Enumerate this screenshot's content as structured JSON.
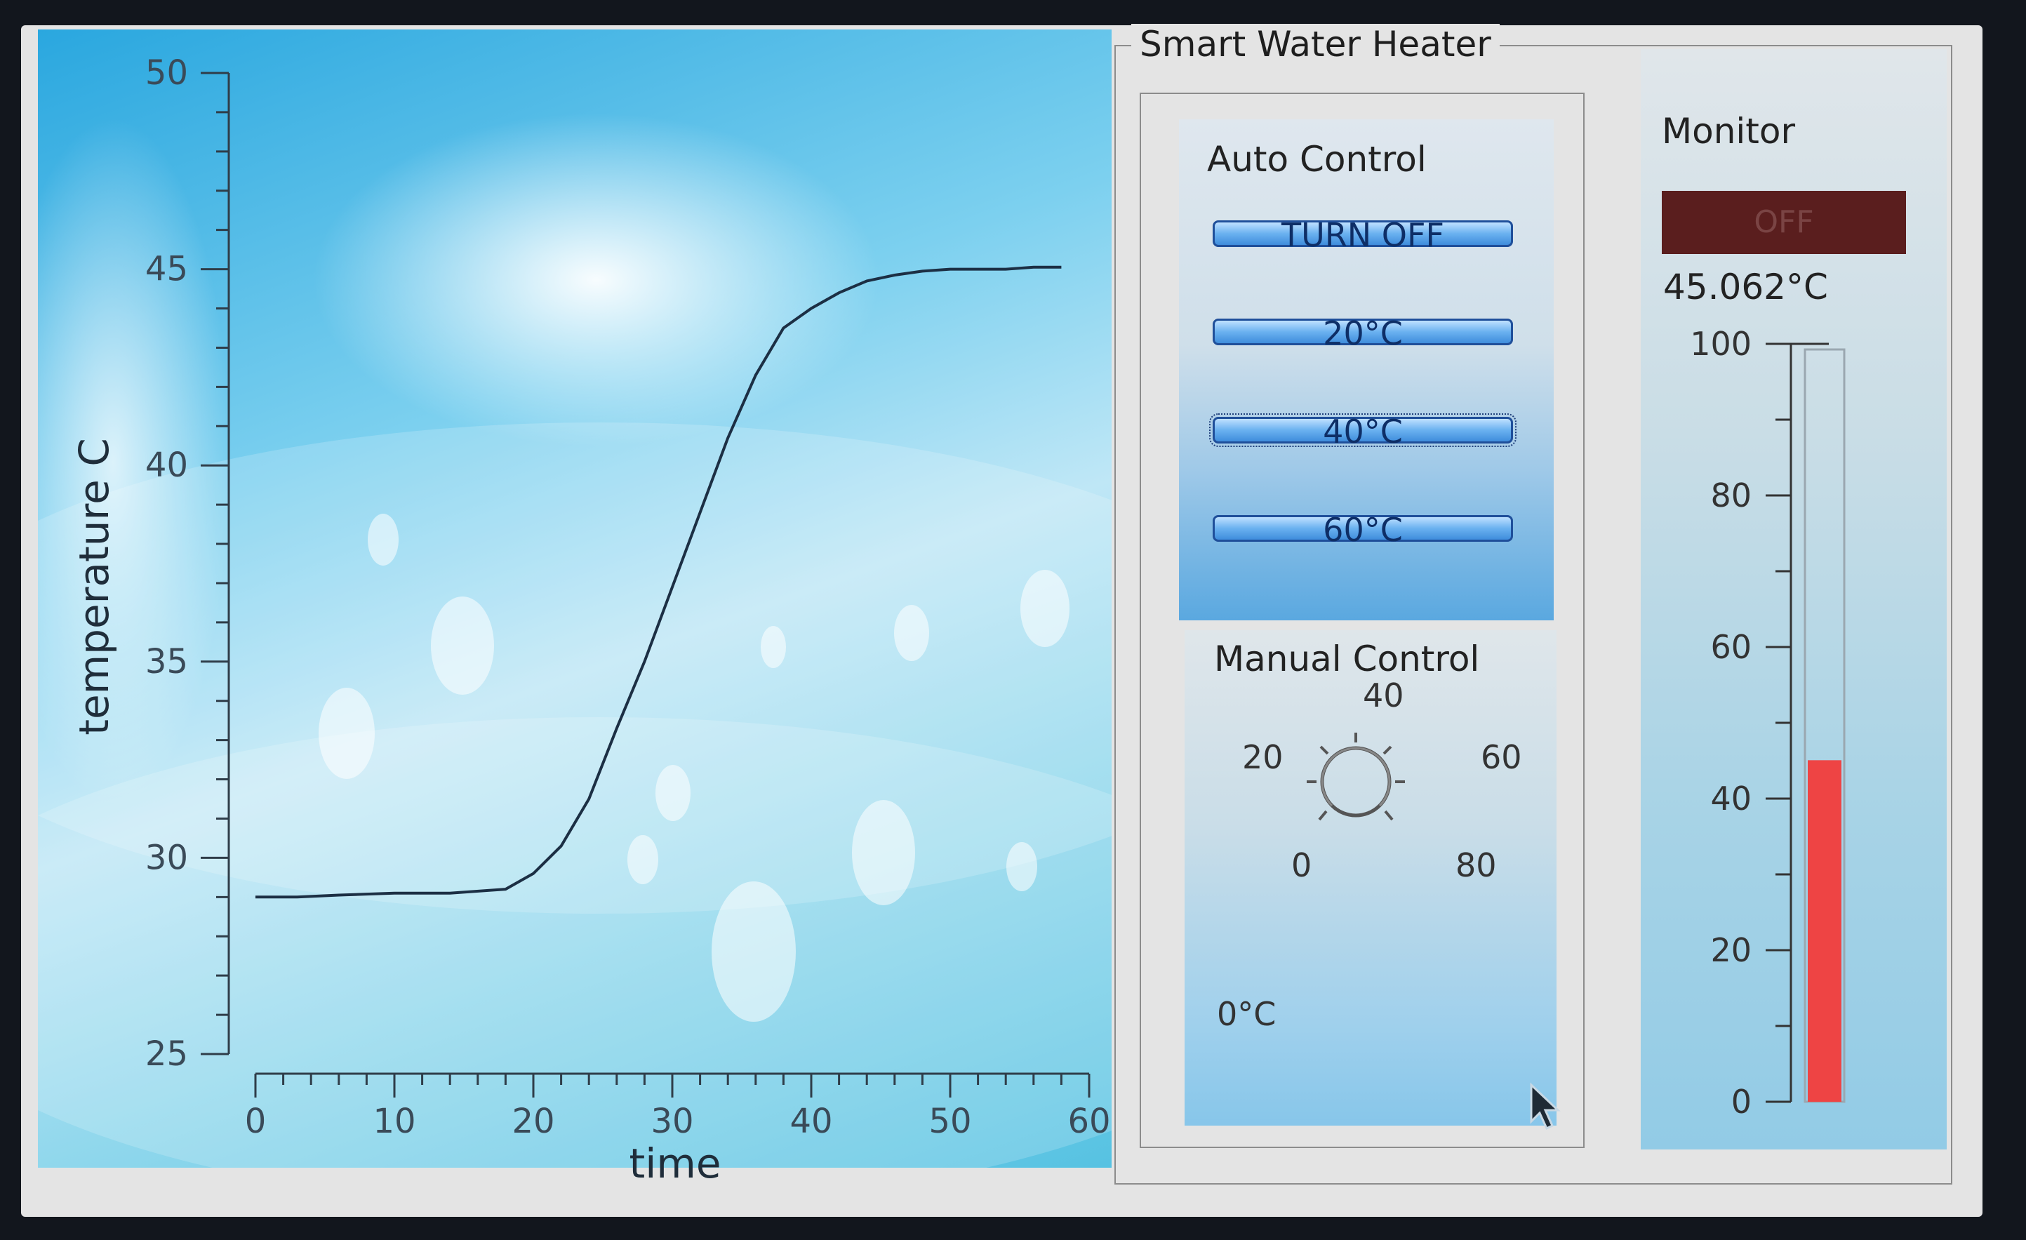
{
  "chart_data": {
    "type": "line",
    "xlabel": "time",
    "ylabel": "temperature C",
    "xlim": [
      0,
      60
    ],
    "ylim": [
      25,
      50
    ],
    "xticks": [
      0,
      10,
      20,
      30,
      40,
      50,
      60
    ],
    "yticks": [
      25,
      30,
      35,
      40,
      45,
      50
    ],
    "series": [
      {
        "color": "#1c2f44",
        "x": [
          0,
          3,
          6,
          10,
          14,
          18,
          20,
          22,
          24,
          26,
          28,
          30,
          32,
          34,
          36,
          38,
          40,
          42,
          44,
          46,
          48,
          50,
          52,
          54,
          56,
          58
        ],
        "y": [
          29.0,
          29.0,
          29.05,
          29.1,
          29.1,
          29.2,
          29.6,
          30.3,
          31.5,
          33.3,
          35.0,
          36.9,
          38.8,
          40.7,
          42.3,
          43.5,
          44.0,
          44.4,
          44.7,
          44.85,
          44.95,
          45.0,
          45.0,
          45.0,
          45.05,
          45.05
        ]
      }
    ]
  },
  "heater": {
    "title": "Smart Water Heater",
    "auto_control": {
      "title": "Auto Control",
      "turn_off": "TURN OFF",
      "btn_20": "20°C",
      "btn_40": "40°C",
      "btn_60": "60°C"
    },
    "manual_control": {
      "title": "Manual Control",
      "dial_labels": {
        "l0": "0",
        "l20": "20",
        "l40": "40",
        "l60": "60",
        "l80": "80"
      },
      "value": "0°C"
    },
    "monitor": {
      "title": "Monitor",
      "status": "OFF",
      "status_color": "#5a1e1e",
      "temperature": "45.062°C",
      "thermometer": {
        "min": 0,
        "max": 100,
        "ticks": [
          0,
          20,
          40,
          60,
          80,
          100
        ],
        "value": 45.062,
        "fill_color": "#ee4444"
      }
    }
  }
}
